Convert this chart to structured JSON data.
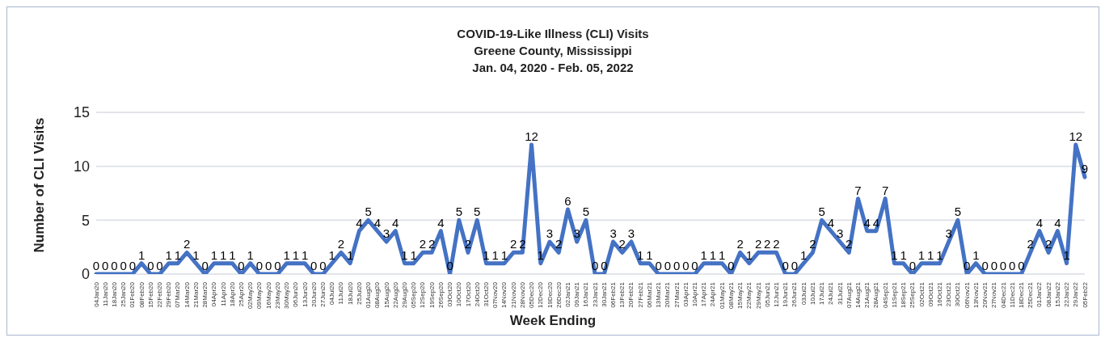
{
  "chart_data": {
    "type": "line",
    "title": "COVID-19-Like Illness (CLI) Visits\nGreene County, Mississippi\nJan. 04, 2020 - Feb. 05, 2022",
    "xlabel": "Week Ending",
    "ylabel": "Number of CLI Visits",
    "categories": [
      "04Jan20",
      "11Jan20",
      "18Jan20",
      "25Jan20",
      "01Feb20",
      "08Feb20",
      "15Feb20",
      "22Feb20",
      "29Feb20",
      "07Mar20",
      "14Mar20",
      "21Mar20",
      "28Mar20",
      "04Apr20",
      "11Apr20",
      "18Apr20",
      "25Apr20",
      "02May20",
      "09May20",
      "16May20",
      "23May20",
      "30May20",
      "06Jun20",
      "13Jun20",
      "20Jun20",
      "27Jun20",
      "04Jul20",
      "11Jul20",
      "18Jul20",
      "25Jul20",
      "01Aug20",
      "08Aug20",
      "15Aug20",
      "22Aug20",
      "29Aug20",
      "05Sep20",
      "12Sep20",
      "19Sep20",
      "26Sep20",
      "03Oct20",
      "10Oct20",
      "17Oct20",
      "24Oct20",
      "31Oct20",
      "07Nov20",
      "14Nov20",
      "21Nov20",
      "28Nov20",
      "05Dec20",
      "12Dec20",
      "19Dec20",
      "26Dec20",
      "02Jan21",
      "09Jan21",
      "16Jan21",
      "23Jan21",
      "30Jan21",
      "06Feb21",
      "13Feb21",
      "20Feb21",
      "27Feb21",
      "06Mar21",
      "13Mar21",
      "20Mar21",
      "27Mar21",
      "03Apr21",
      "10Apr21",
      "17Apr21",
      "24Apr21",
      "01May21",
      "08May21",
      "15May21",
      "22May21",
      "29May21",
      "05Jun21",
      "12Jun21",
      "19Jun21",
      "26Jun21",
      "03Jul21",
      "10Jul21",
      "17Jul21",
      "24Jul21",
      "31Jul21",
      "07Aug21",
      "14Aug21",
      "21Aug21",
      "28Aug21",
      "04Sep21",
      "11Sep21",
      "18Sep21",
      "25Sep21",
      "02Oct21",
      "09Oct21",
      "16Oct21",
      "23Oct21",
      "30Oct21",
      "06Nov21",
      "13Nov21",
      "20Nov21",
      "27Nov21",
      "04Dec21",
      "11Dec21",
      "18Dec21",
      "25Dec21",
      "01Jan22",
      "08Jan22",
      "15Jan22",
      "22Jan22",
      "29Jan22",
      "05Feb22"
    ],
    "values": [
      0,
      0,
      0,
      0,
      0,
      1,
      0,
      0,
      1,
      1,
      2,
      1,
      0,
      1,
      1,
      1,
      0,
      1,
      0,
      0,
      0,
      1,
      1,
      1,
      0,
      0,
      1,
      2,
      1,
      4,
      5,
      4,
      3,
      4,
      1,
      1,
      2,
      2,
      4,
      0,
      5,
      2,
      5,
      1,
      1,
      1,
      2,
      2,
      12,
      1,
      3,
      2,
      6,
      3,
      5,
      0,
      0,
      3,
      2,
      3,
      1,
      1,
      0,
      0,
      0,
      0,
      0,
      1,
      1,
      1,
      0,
      2,
      1,
      2,
      2,
      2,
      0,
      0,
      1,
      2,
      5,
      4,
      3,
      2,
      7,
      4,
      4,
      7,
      1,
      1,
      0,
      1,
      1,
      1,
      3,
      5,
      0,
      1,
      0,
      0,
      0,
      0,
      0,
      2,
      4,
      2,
      4,
      1,
      12,
      9
    ],
    "color": "#4472c4",
    "ylim": [
      0,
      15
    ],
    "yticks": [
      0,
      5,
      10,
      15
    ],
    "grid": "y",
    "data_labels": true,
    "marker": "none",
    "line_style": "solid"
  }
}
